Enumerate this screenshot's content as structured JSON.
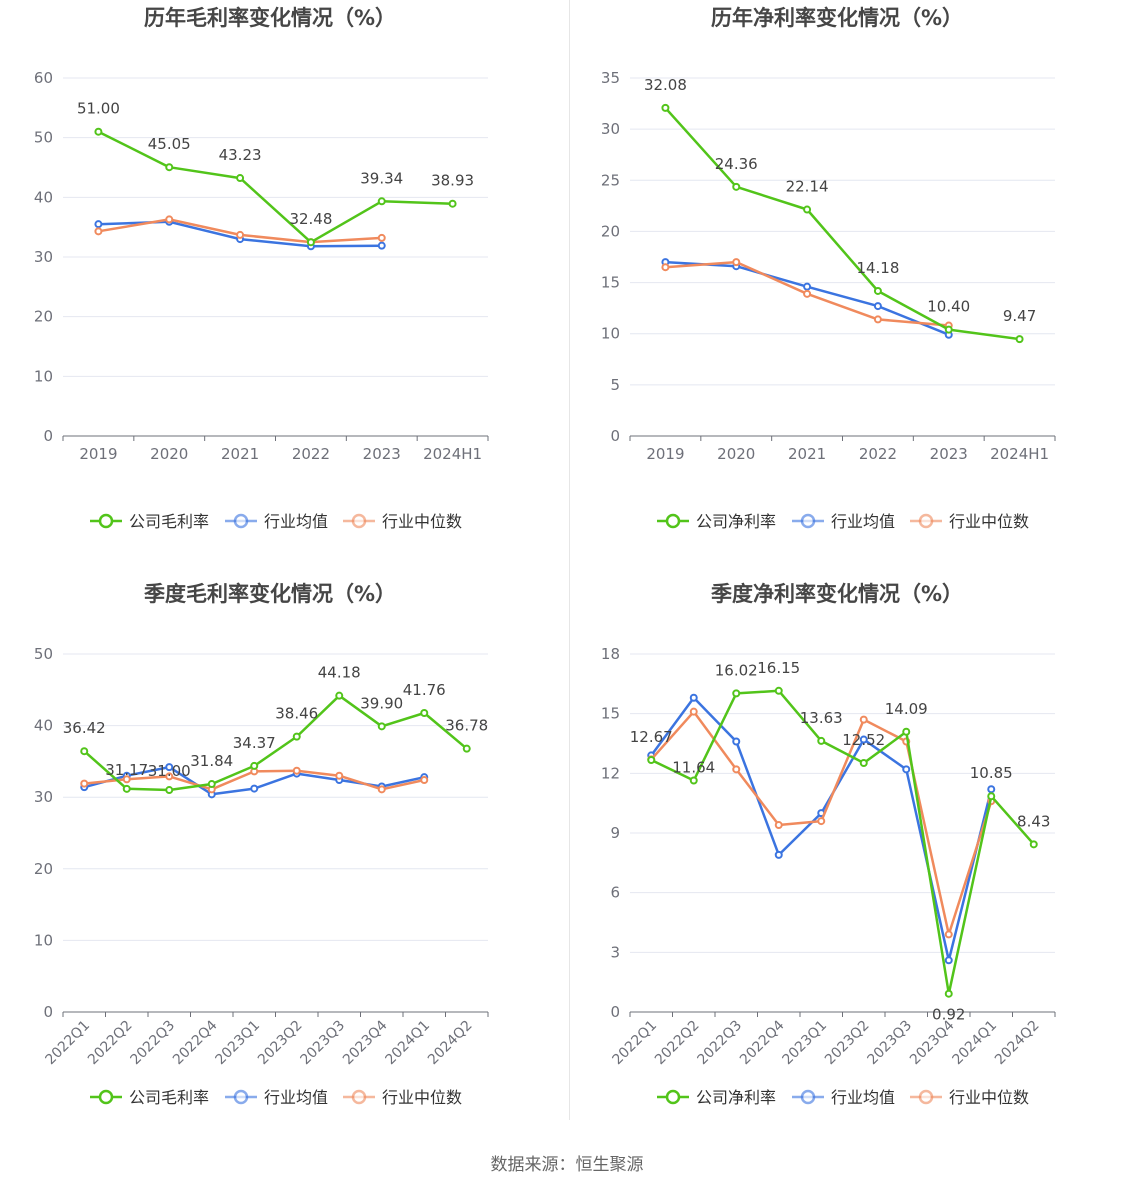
{
  "colors": {
    "company": "#52c41a",
    "avg": "#3b74e0",
    "median": "#f08a5d",
    "grid": "#e4e7f0",
    "axis": "#6e7079",
    "tick": "#6e7079",
    "label": "#444444",
    "title": "#464646"
  },
  "legend": {
    "company_gross": "公司毛利率",
    "company_net": "公司净利率",
    "avg": "行业均值",
    "median": "行业中位数"
  },
  "source": {
    "prefix": "数据来源：",
    "name": "恒生聚源"
  },
  "chart_data": [
    {
      "id": "annual-gross",
      "type": "line",
      "title": "历年毛利率变化情况（%）",
      "categories": [
        "2019",
        "2020",
        "2021",
        "2022",
        "2023",
        "2024H1"
      ],
      "yticks": [
        0,
        10,
        20,
        30,
        40,
        50,
        60
      ],
      "ylim": [
        0,
        60
      ],
      "series": [
        {
          "key": "company",
          "name": "公司毛利率",
          "values": [
            51.0,
            45.05,
            43.23,
            32.48,
            39.34,
            38.93
          ],
          "labels": [
            "51.00",
            "45.05",
            "43.23",
            "32.48",
            "39.34",
            "38.93"
          ]
        },
        {
          "key": "avg",
          "name": "行业均值",
          "values": [
            35.5,
            35.9,
            33.0,
            31.8,
            31.9,
            null
          ]
        },
        {
          "key": "median",
          "name": "行业中位数",
          "values": [
            34.3,
            36.3,
            33.7,
            32.5,
            33.2,
            null
          ]
        }
      ]
    },
    {
      "id": "annual-net",
      "type": "line",
      "title": "历年净利率变化情况（%）",
      "categories": [
        "2019",
        "2020",
        "2021",
        "2022",
        "2023",
        "2024H1"
      ],
      "yticks": [
        0,
        5,
        10,
        15,
        20,
        25,
        30,
        35
      ],
      "ylim": [
        0,
        35
      ],
      "series": [
        {
          "key": "company",
          "name": "公司净利率",
          "values": [
            32.08,
            24.36,
            22.14,
            14.18,
            10.4,
            9.47
          ],
          "labels": [
            "32.08",
            "24.36",
            "22.14",
            "14.18",
            "10.40",
            "9.47"
          ]
        },
        {
          "key": "avg",
          "name": "行业均值",
          "values": [
            17.0,
            16.6,
            14.6,
            12.7,
            9.9,
            null
          ]
        },
        {
          "key": "median",
          "name": "行业中位数",
          "values": [
            16.5,
            17.0,
            13.9,
            11.4,
            10.8,
            null
          ]
        }
      ]
    },
    {
      "id": "quarterly-gross",
      "type": "line",
      "title": "季度毛利率变化情况（%）",
      "categories": [
        "2022Q1",
        "2022Q2",
        "2022Q3",
        "2022Q4",
        "2023Q1",
        "2023Q2",
        "2023Q3",
        "2023Q4",
        "2024Q1",
        "2024Q2"
      ],
      "yticks": [
        0,
        10,
        20,
        30,
        40,
        50
      ],
      "ylim": [
        0,
        50
      ],
      "series": [
        {
          "key": "company",
          "name": "公司毛利率",
          "values": [
            36.42,
            31.17,
            31.0,
            31.84,
            34.37,
            38.46,
            44.18,
            39.9,
            41.76,
            36.78
          ],
          "labels": [
            "36.42",
            "31.17",
            "31.00",
            "31.84",
            "34.37",
            "38.46",
            "44.18",
            "39.90",
            "41.76",
            "36.78"
          ]
        },
        {
          "key": "avg",
          "name": "行业均值",
          "values": [
            31.4,
            33.0,
            34.2,
            30.4,
            31.2,
            33.3,
            32.4,
            31.5,
            32.8,
            null
          ]
        },
        {
          "key": "median",
          "name": "行业中位数",
          "values": [
            31.9,
            32.5,
            32.9,
            31.1,
            33.6,
            33.7,
            33.0,
            31.1,
            32.4,
            null
          ]
        }
      ]
    },
    {
      "id": "quarterly-net",
      "type": "line",
      "title": "季度净利率变化情况（%）",
      "categories": [
        "2022Q1",
        "2022Q2",
        "2022Q3",
        "2022Q4",
        "2023Q1",
        "2023Q2",
        "2023Q3",
        "2023Q4",
        "2024Q1",
        "2024Q2"
      ],
      "yticks": [
        0,
        3,
        6,
        9,
        12,
        15,
        18
      ],
      "ylim": [
        0,
        18
      ],
      "series": [
        {
          "key": "company",
          "name": "公司净利率",
          "values": [
            12.67,
            11.64,
            16.02,
            16.15,
            13.63,
            12.52,
            14.09,
            0.92,
            10.85,
            8.43
          ],
          "labels": [
            "12.67",
            "11.64",
            "16.02",
            "16.15",
            "13.63",
            "12.52",
            "14.09",
            "0.92",
            "10.85",
            "8.43"
          ]
        },
        {
          "key": "avg",
          "name": "行业均值",
          "values": [
            12.9,
            15.8,
            13.6,
            7.9,
            10.0,
            13.7,
            12.2,
            2.6,
            11.2,
            null
          ]
        },
        {
          "key": "median",
          "name": "行业中位数",
          "values": [
            12.7,
            15.1,
            12.2,
            9.4,
            9.6,
            14.7,
            13.6,
            3.9,
            10.6,
            null
          ]
        }
      ]
    }
  ]
}
